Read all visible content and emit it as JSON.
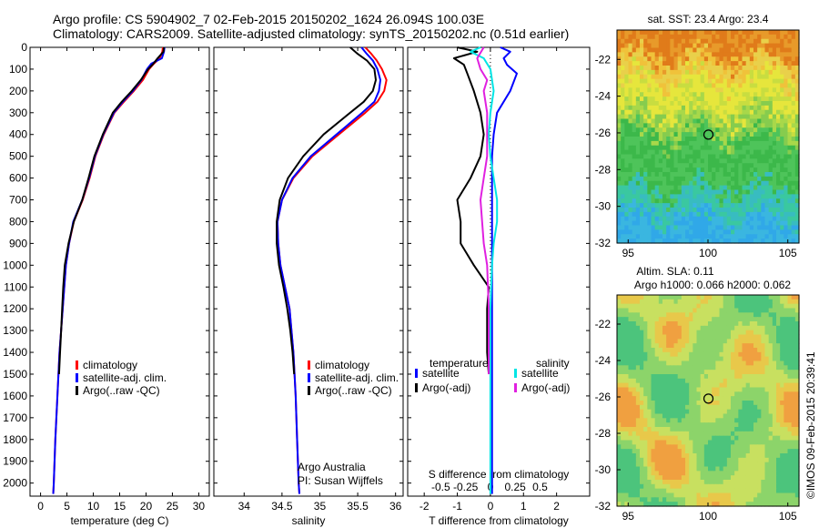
{
  "header": {
    "line1": "Argo profile: CS 5904902_7 02-Feb-2015 20150202_1624 26.094S 100.03E",
    "line2": "Climatology: CARS2009. Satellite-adjusted climatology: synTS_20150202.nc (0.51d earlier)"
  },
  "colors": {
    "climatology": "#ff0000",
    "satellite": "#0000ff",
    "argo": "#000000",
    "satellite_s": "#00e5e5",
    "argo_s": "#e020e0"
  },
  "depth_ticks": [
    0,
    100,
    200,
    300,
    400,
    500,
    600,
    700,
    800,
    900,
    1000,
    1100,
    1200,
    1300,
    1400,
    1500,
    1600,
    1700,
    1800,
    1900,
    2000
  ],
  "chart_data": [
    {
      "type": "line",
      "id": "temperature",
      "xlabel": "temperature (deg C)",
      "ylabel": "",
      "xlim": [
        -2,
        32
      ],
      "ylim": [
        2060,
        0
      ],
      "xticks": [
        0,
        5,
        10,
        15,
        20,
        25,
        30
      ],
      "x_tick_labels": [
        "0",
        "5",
        "10",
        "15",
        "20",
        "25",
        "30"
      ],
      "legend": [
        "climatology",
        "satellite-adj. clim.",
        "Argo(..raw -QC)"
      ],
      "series": [
        {
          "name": "climatology",
          "color": "#ff0000",
          "depth": [
            0,
            20,
            50,
            75,
            100,
            150,
            200,
            250,
            300,
            400,
            500,
            600,
            700,
            800,
            900,
            1000,
            1200,
            1400,
            1600,
            1800,
            2000,
            2050
          ],
          "values": [
            23.2,
            23.1,
            22.6,
            21.5,
            20.6,
            19.4,
            17.7,
            15.8,
            14.0,
            12.0,
            10.4,
            9.3,
            8.0,
            6.3,
            5.4,
            4.8,
            4.2,
            3.6,
            3.2,
            2.8,
            2.5,
            2.4
          ]
        },
        {
          "name": "satellite-adj. clim.",
          "color": "#0000ff",
          "depth": [
            0,
            20,
            50,
            75,
            100,
            150,
            200,
            250,
            300,
            400,
            500,
            600,
            700,
            800,
            900,
            1000,
            1200,
            1400,
            1600,
            1800,
            2000,
            2050
          ],
          "values": [
            23.5,
            23.4,
            23.0,
            21.0,
            20.2,
            19.1,
            17.5,
            15.6,
            13.9,
            11.9,
            10.3,
            9.2,
            7.9,
            6.2,
            5.4,
            4.8,
            4.2,
            3.6,
            3.2,
            2.8,
            2.5,
            2.4
          ]
        },
        {
          "name": "Argo(..raw -QC)",
          "color": "#000000",
          "depth": [
            0,
            20,
            50,
            75,
            100,
            150,
            200,
            250,
            300,
            400,
            500,
            600,
            700,
            800,
            900,
            1000,
            1100,
            1200,
            1300,
            1400,
            1500
          ],
          "values": [
            23.4,
            23.3,
            22.2,
            21.4,
            20.4,
            19.0,
            17.3,
            15.4,
            13.7,
            11.8,
            10.2,
            9.1,
            7.9,
            6.3,
            5.3,
            4.6,
            4.3,
            4.1,
            3.9,
            3.7,
            3.5
          ]
        }
      ]
    },
    {
      "type": "line",
      "id": "salinity",
      "xlabel": "salinity",
      "ylabel": "",
      "xlim": [
        33.6,
        36.1
      ],
      "ylim": [
        2060,
        0
      ],
      "xticks": [
        34,
        34.5,
        35,
        35.5,
        36
      ],
      "x_tick_labels": [
        "34",
        "34.5",
        "35",
        "35.5",
        "36"
      ],
      "legend": [
        "climatology",
        "satellite-adj. clim.",
        "Argo(..raw -QC)"
      ],
      "series": [
        {
          "name": "climatology",
          "color": "#ff0000",
          "depth": [
            0,
            30,
            60,
            100,
            150,
            200,
            250,
            300,
            400,
            500,
            600,
            700,
            800,
            900,
            1000,
            1100,
            1200,
            1400,
            1600,
            1800,
            2000,
            2050
          ],
          "values": [
            35.6,
            35.68,
            35.75,
            35.82,
            35.88,
            35.85,
            35.76,
            35.6,
            35.25,
            34.9,
            34.65,
            34.5,
            34.44,
            34.45,
            34.48,
            34.54,
            34.6,
            34.65,
            34.68,
            34.7,
            34.72,
            34.73
          ]
        },
        {
          "name": "satellite-adj. clim.",
          "color": "#0000ff",
          "depth": [
            0,
            30,
            60,
            100,
            150,
            200,
            250,
            300,
            400,
            500,
            600,
            700,
            800,
            900,
            1000,
            1100,
            1200,
            1400,
            1600,
            1800,
            2000,
            2050
          ],
          "values": [
            35.55,
            35.62,
            35.7,
            35.76,
            35.8,
            35.78,
            35.72,
            35.56,
            35.22,
            34.88,
            34.64,
            34.5,
            34.44,
            34.45,
            34.48,
            34.54,
            34.6,
            34.65,
            34.68,
            34.7,
            34.72,
            34.73
          ]
        },
        {
          "name": "Argo(..raw -QC)",
          "color": "#000000",
          "depth": [
            0,
            30,
            60,
            100,
            150,
            200,
            250,
            300,
            400,
            500,
            600,
            700,
            800,
            900,
            1000,
            1100,
            1200,
            1300,
            1400,
            1500
          ],
          "values": [
            35.4,
            35.5,
            35.62,
            35.72,
            35.74,
            35.7,
            35.58,
            35.4,
            35.05,
            34.78,
            34.58,
            34.47,
            34.43,
            34.43,
            34.46,
            34.52,
            34.57,
            34.61,
            34.64,
            34.66
          ]
        }
      ]
    },
    {
      "type": "line",
      "id": "difference",
      "xlabel": "T difference from climatology",
      "x2label": "S difference from climatology",
      "xlim": [
        -2.5,
        3
      ],
      "ylim": [
        2060,
        0
      ],
      "xticks": [
        -2,
        -1,
        0,
        1,
        2
      ],
      "x_tick_labels": [
        "-2",
        "-1",
        "0",
        "1",
        "2"
      ],
      "x2_tick_labels": [
        "-0.5",
        "-0.25",
        "0",
        "0.25",
        "0.5"
      ],
      "legend_groups": {
        "temperature": [
          "satellite",
          "Argo(-adj)"
        ],
        "salinity": [
          "satellite",
          "Argo(-adj)"
        ]
      },
      "group_titles": [
        "temperature",
        "salinity"
      ],
      "series": [
        {
          "name": "satellite",
          "group": "temperature",
          "color": "#0000ff",
          "depth": [
            0,
            20,
            50,
            80,
            120,
            200,
            300,
            400,
            500,
            600,
            700,
            800,
            900,
            1000,
            1200,
            1500,
            2000,
            2050
          ],
          "values": [
            0.3,
            0.6,
            0.4,
            0.5,
            0.8,
            0.6,
            0.2,
            0.1,
            0.05,
            0.05,
            0.05,
            0.05,
            0.05,
            0.05,
            0.05,
            0.05,
            0.05,
            0.05
          ]
        },
        {
          "name": "Argo(-adj)",
          "group": "temperature",
          "color": "#000000",
          "depth": [
            0,
            20,
            50,
            80,
            120,
            200,
            300,
            400,
            500,
            600,
            700,
            800,
            900,
            1000,
            1100,
            1200,
            1300,
            1400,
            1500
          ],
          "values": [
            -1.0,
            -0.4,
            -1.1,
            -0.8,
            -0.7,
            -0.5,
            -0.3,
            -0.2,
            -0.3,
            -0.6,
            -1.0,
            -0.9,
            -0.9,
            -0.5,
            -0.05,
            -0.1,
            -0.1,
            -0.1,
            -0.05
          ]
        },
        {
          "name": "satellite",
          "group": "salinity",
          "color": "#00e5e5",
          "depth": [
            0,
            20,
            50,
            100,
            200,
            300,
            400,
            500,
            600,
            700,
            800,
            900,
            1000,
            1200,
            1500,
            2000,
            2050
          ],
          "values": [
            -0.3,
            -0.6,
            -0.2,
            0.0,
            0.1,
            0.0,
            -0.05,
            0.0,
            0.1,
            0.2,
            0.2,
            0.1,
            0.05,
            0.0,
            0.0,
            0.0,
            0.0
          ]
        },
        {
          "name": "Argo(-adj)",
          "group": "salinity",
          "color": "#e020e0",
          "depth": [
            0,
            50,
            100,
            150,
            200,
            300,
            400,
            500,
            600,
            700,
            800,
            900,
            1000,
            1200,
            1500
          ],
          "values": [
            -0.2,
            -0.4,
            -0.3,
            -0.1,
            -0.2,
            -0.1,
            -0.1,
            -0.1,
            -0.2,
            -0.3,
            -0.25,
            -0.2,
            -0.1,
            -0.05,
            -0.05
          ]
        }
      ]
    },
    {
      "type": "heatmap",
      "id": "sst_map",
      "title": "sat. SST: 23.4  Argo: 23.4",
      "xlim": [
        94.3,
        105.7
      ],
      "ylim": [
        -32,
        -20.4
      ],
      "xticks": [
        95,
        100,
        105
      ],
      "yticks": [
        -22,
        -24,
        -26,
        -28,
        -30,
        -32
      ],
      "marker": {
        "lon": 100.03,
        "lat": -26.094
      }
    },
    {
      "type": "heatmap",
      "id": "sla_map",
      "title1": "Altim. SLA: 0.11",
      "title2": "Argo h1000: 0.066 h2000: 0.062",
      "xlim": [
        94.3,
        105.7
      ],
      "ylim": [
        -32,
        -20.4
      ],
      "xticks": [
        95,
        100,
        105
      ],
      "yticks": [
        -22,
        -24,
        -26,
        -28,
        -30,
        -32
      ],
      "marker": {
        "lon": 100.03,
        "lat": -26.094
      }
    }
  ],
  "annotations": {
    "institution": "Argo Australia",
    "pi": "PI: Susan Wijffels",
    "credit": "©IMOS 09-Feb-2015 20:39:41"
  }
}
